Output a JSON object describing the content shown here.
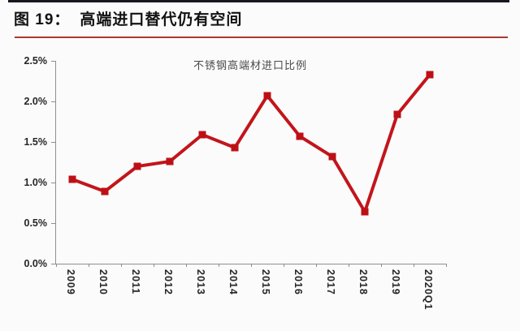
{
  "header": {
    "figure_label": "图 19：",
    "title": "高端进口替代仍有空间"
  },
  "colors": {
    "top_bar": "#17171f",
    "title_underline": "#ab3832",
    "axis": "#8f8f8f",
    "tick_label": "#262626",
    "line": "#c2151b",
    "marker": "#bd1016"
  },
  "chart_data": {
    "type": "line",
    "title": "不锈钢高端材进口比例",
    "x": [
      "2009",
      "2010",
      "2011",
      "2012",
      "2013",
      "2014",
      "2015",
      "2016",
      "2017",
      "2018",
      "2019",
      "2020Q1"
    ],
    "series": [
      {
        "name": "不锈钢高端材进口比例",
        "values_pct": [
          1.04,
          0.89,
          1.2,
          1.26,
          1.59,
          1.43,
          2.07,
          1.57,
          1.32,
          0.64,
          1.84,
          2.33
        ]
      }
    ],
    "ylabel": "",
    "xlabel": "",
    "ylim": [
      0,
      2.5
    ],
    "y_tick_labels": [
      "0.0%",
      "0.5%",
      "1.0%",
      "1.5%",
      "2.0%",
      "2.5%"
    ],
    "y_tick_step_pct": 0.5,
    "grid": false,
    "legend_position": "top-center",
    "marker": "square"
  }
}
